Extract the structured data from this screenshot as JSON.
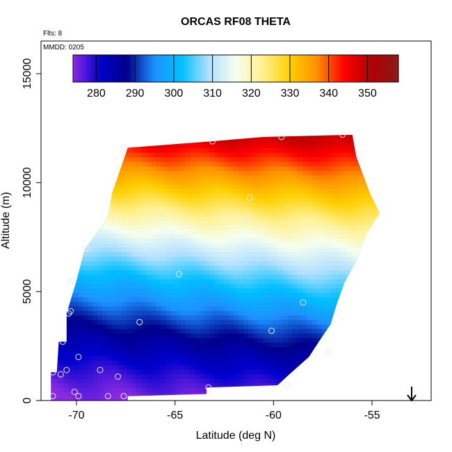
{
  "chart_data": {
    "type": "heatmap",
    "title": "ORCAS RF08 THETA",
    "xlabel": "Latitude (deg N)",
    "ylabel": "Altitude (m)",
    "xlim": [
      -71.8,
      -52.0
    ],
    "ylim": [
      0,
      16500
    ],
    "x_ticks": [
      -70,
      -65,
      -60,
      -55
    ],
    "x_tick_labels": [
      "-70",
      "-65",
      "-60",
      "-55"
    ],
    "y_ticks": [
      0,
      5000,
      10000,
      15000
    ],
    "y_tick_labels": [
      "0",
      "5000",
      "10000",
      "15000"
    ],
    "annotations": {
      "flights": "Flts: 8",
      "date": "MMDD: 0205"
    },
    "colorbar": {
      "min": 274,
      "max": 358,
      "ticks": [
        280,
        290,
        300,
        310,
        320,
        330,
        340,
        350
      ],
      "tick_labels": [
        "280",
        "290",
        "300",
        "310",
        "320",
        "330",
        "340",
        "350"
      ],
      "colors": [
        "#8a2be2",
        "#0000cd",
        "#00008b",
        "#1e90ff",
        "#00bfff",
        "#b0e0ff",
        "#f5fff0",
        "#fff090",
        "#ffd000",
        "#ff9000",
        "#ff0000",
        "#b00000",
        "#8b1a1a"
      ]
    },
    "data_region": {
      "boundary": [
        [
          -71.3,
          200
        ],
        [
          -71.3,
          1300
        ],
        [
          -71.0,
          1300
        ],
        [
          -70.9,
          2700
        ],
        [
          -70.5,
          2700
        ],
        [
          -70.5,
          4000
        ],
        [
          -70.0,
          5500
        ],
        [
          -69.6,
          6900
        ],
        [
          -68.4,
          8500
        ],
        [
          -68.2,
          9500
        ],
        [
          -67.4,
          11600
        ],
        [
          -63.1,
          11900
        ],
        [
          -60.5,
          12100
        ],
        [
          -56.0,
          12200
        ],
        [
          -55.8,
          11200
        ],
        [
          -55.1,
          9500
        ],
        [
          -54.6,
          8600
        ],
        [
          -55.3,
          7600
        ],
        [
          -55.6,
          6700
        ],
        [
          -56.4,
          5400
        ],
        [
          -56.8,
          4400
        ],
        [
          -57.1,
          3500
        ],
        [
          -57.7,
          2700
        ],
        [
          -58.2,
          2000
        ],
        [
          -59.2,
          1200
        ],
        [
          -59.8,
          700
        ],
        [
          -63.4,
          600
        ],
        [
          -63.4,
          300
        ],
        [
          -67.4,
          200
        ],
        [
          -67.4,
          0
        ],
        [
          -71.3,
          0
        ]
      ],
      "theta_bottom": 276,
      "theta_top": 348
    },
    "flight_points": [
      [
        -67.6,
        11600
      ],
      [
        -63.1,
        11900
      ],
      [
        -59.6,
        12100
      ],
      [
        -56.5,
        12200
      ],
      [
        -61.2,
        9300
      ],
      [
        -61.3,
        8400
      ],
      [
        -69.5,
        7000
      ],
      [
        -64.8,
        5800
      ],
      [
        -70.2,
        5500
      ],
      [
        -58.5,
        4500
      ],
      [
        -70.4,
        4000
      ],
      [
        -70.3,
        4100
      ],
      [
        -66.8,
        3600
      ],
      [
        -60.1,
        3200
      ],
      [
        -70.7,
        2700
      ],
      [
        -57.2,
        2200
      ],
      [
        -69.9,
        2000
      ],
      [
        -70.5,
        1400
      ],
      [
        -68.8,
        1400
      ],
      [
        -71.2,
        1300
      ],
      [
        -70.8,
        1200
      ],
      [
        -67.9,
        1100
      ],
      [
        -63.3,
        600
      ],
      [
        -59.3,
        700
      ],
      [
        -70.1,
        400
      ],
      [
        -71.2,
        200
      ],
      [
        -69.9,
        200
      ],
      [
        -68.4,
        200
      ],
      [
        -67.6,
        200
      ]
    ],
    "grid": false,
    "legend": "colorbar top inside plot",
    "arrow": "down-arrow at bottom-right"
  }
}
